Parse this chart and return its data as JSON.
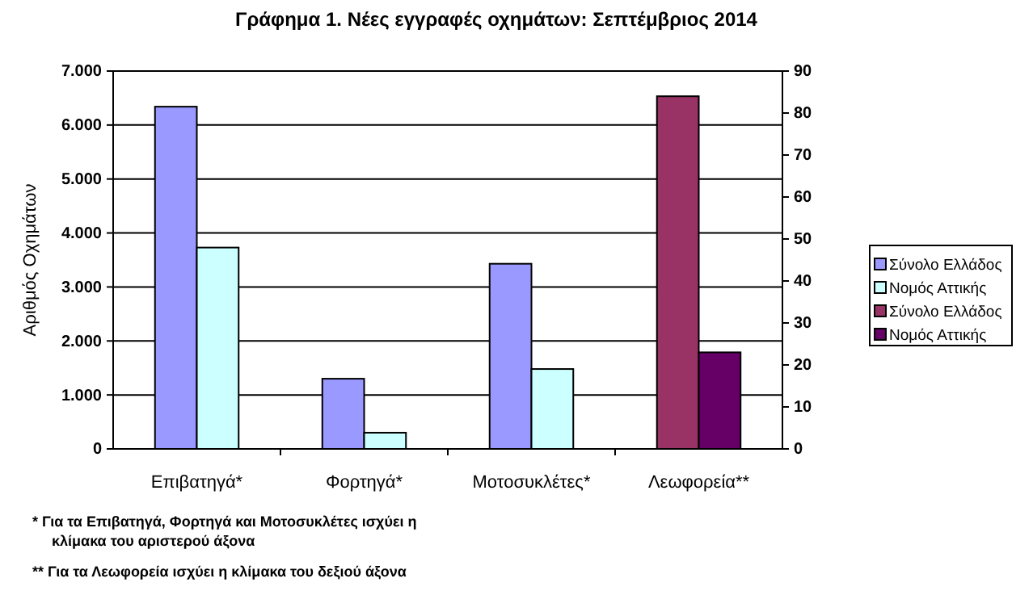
{
  "chart_data": {
    "type": "bar",
    "title": "Γράφημα 1. Νέες εγγραφές οχημάτων: Σεπτέμβριος 2014",
    "ylabel": "Αριθμός Οχημάτων",
    "categories": [
      "Επιβατηγά*",
      "Φορτηγά*",
      "Μοτοσυκλέτες*",
      "Λεωφορεία**"
    ],
    "series": [
      {
        "name": "Σύνολο Ελλάδος",
        "color": "#9999ff",
        "values": [
          6340,
          1300,
          3430,
          null
        ]
      },
      {
        "name": "Νομός Αττικής",
        "color": "#ccffff",
        "values": [
          3730,
          300,
          1480,
          null
        ]
      },
      {
        "name": "Σύνολο Ελλάδος",
        "color": "#993366",
        "axis": "y2",
        "values": [
          null,
          null,
          null,
          84
        ]
      },
      {
        "name": "Νομός Αττικής",
        "color": "#660066",
        "axis": "y2",
        "values": [
          null,
          null,
          null,
          23
        ]
      }
    ],
    "ylim": [
      0,
      7000
    ],
    "yticks": [
      0,
      {
        "value": 1000,
        "label": "1.000"
      },
      {
        "value": 2000,
        "label": "2.000"
      },
      {
        "value": 3000,
        "label": "3.000"
      },
      {
        "value": 4000,
        "label": "4.000"
      },
      {
        "value": 5000,
        "label": "5.000"
      },
      {
        "value": 6000,
        "label": "6.000"
      },
      {
        "value": 7000,
        "label": "7.000"
      }
    ],
    "y2lim": [
      0,
      90
    ],
    "y2ticks": [
      0,
      10,
      20,
      30,
      40,
      50,
      60,
      70,
      80,
      90
    ],
    "grid": "y",
    "legend": "right",
    "annotations": [
      "*   Για τα Επιβατηγά, Φορτηγά και Μοτοσυκλέτες ισχύει η κλίμακα του αριστερού  άξονα",
      "**  Για τα Λεωφορεία  ισχύει η κλίμακα του δεξιού  άξονα"
    ]
  }
}
